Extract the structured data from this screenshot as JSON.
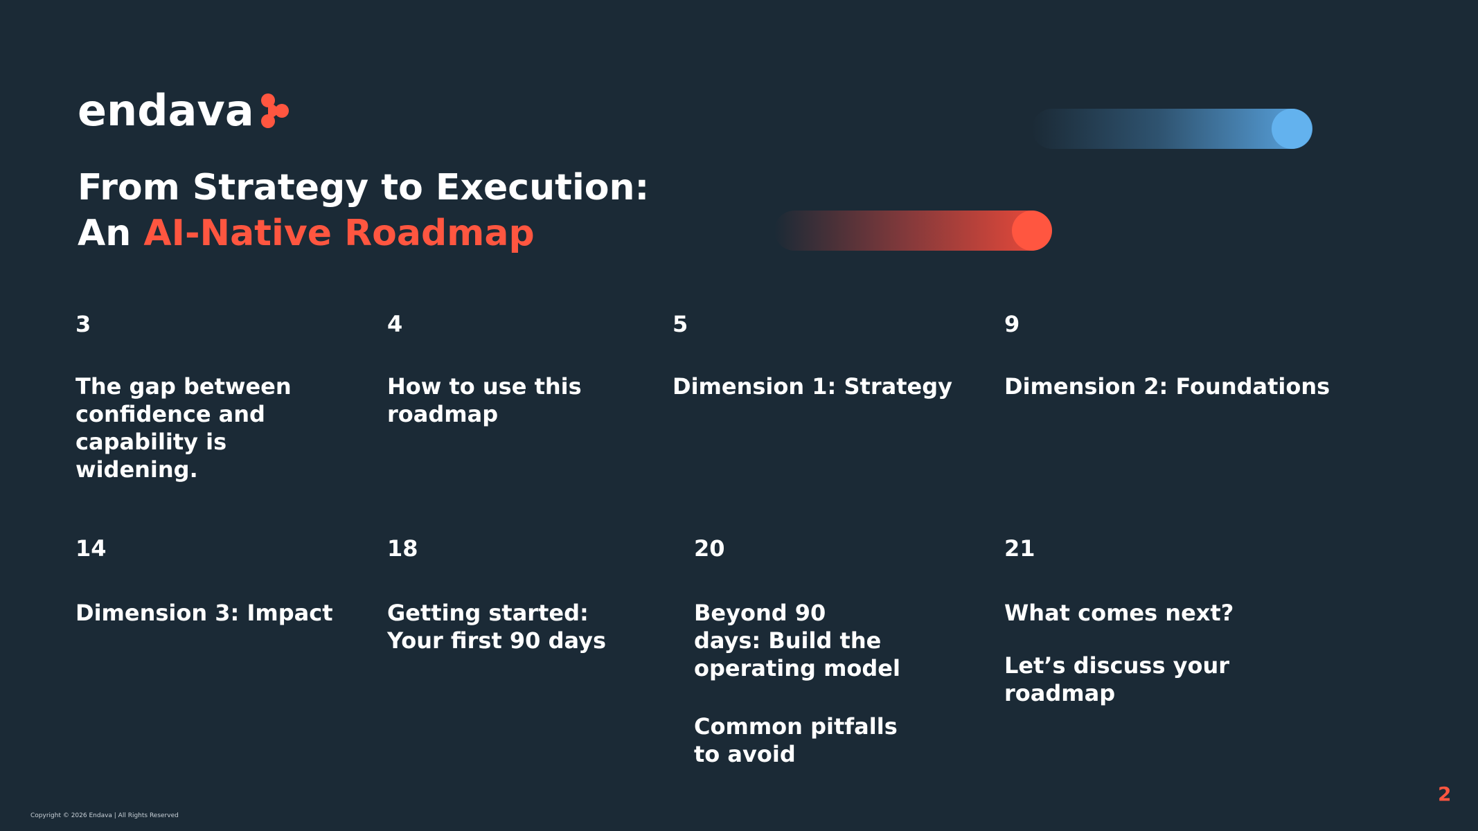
{
  "logo": {
    "text": "endava"
  },
  "title": {
    "line1": "From Strategy to Execution:",
    "line2_prefix": "An ",
    "line2_accent": "AI-Native Roadmap"
  },
  "colors": {
    "background": "#1b2a36",
    "accent": "#ff5640",
    "blue": "#63b2ee",
    "text": "#ffffff"
  },
  "toc": [
    {
      "page": "3",
      "lines": [
        "The gap between",
        "confidence and",
        "capability is",
        "widening."
      ]
    },
    {
      "page": "4",
      "lines": [
        "How to use this",
        "roadmap"
      ]
    },
    {
      "page": "5",
      "lines": [
        "Dimension 1: Strategy"
      ]
    },
    {
      "page": "9",
      "lines": [
        "Dimension 2: Foundations"
      ]
    },
    {
      "page": "14",
      "lines": [
        "Dimension 3: Impact"
      ]
    },
    {
      "page": "18",
      "lines": [
        "Getting started:",
        "Your first 90 days"
      ]
    },
    {
      "page": "20",
      "lines": [
        "Beyond 90",
        "days: Build the",
        "operating model"
      ],
      "extra_lines": [
        "Common pitfalls",
        "to avoid"
      ]
    },
    {
      "page": "21",
      "lines": [
        "What comes next?"
      ],
      "extra_lines": [
        "Let’s discuss your",
        "roadmap"
      ]
    }
  ],
  "footer": {
    "copyright": "Copyright © 2026 Endava | All Rights Reserved",
    "page_number": "2"
  }
}
